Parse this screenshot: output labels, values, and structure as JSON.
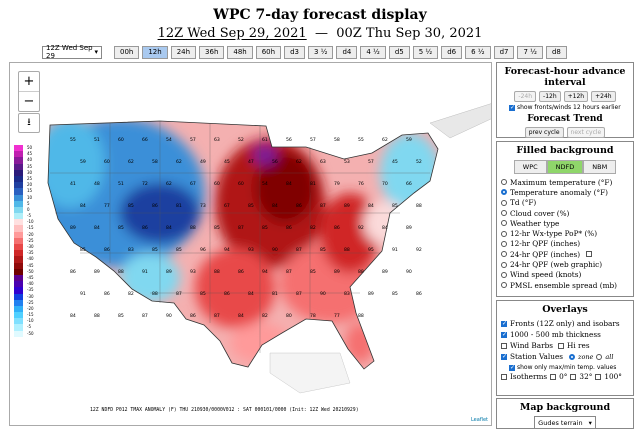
{
  "header": {
    "title": "WPC 7-day forecast display",
    "time_start": "12Z Wed Sep 29, 2021",
    "separator": "—",
    "time_end": "00Z Thu Sep 30, 2021"
  },
  "toolbar": {
    "select_value": "12Z Wed Sep 29",
    "buttons": [
      "00h",
      "12h",
      "24h",
      "36h",
      "48h",
      "60h",
      "d3",
      "3 ½",
      "d4",
      "4 ½",
      "d5",
      "5 ½",
      "d6",
      "6 ½",
      "d7",
      "7 ½",
      "d8"
    ],
    "active": "12h"
  },
  "map": {
    "zoom_in": "+",
    "zoom_out": "−",
    "download_icon": "download-icon",
    "legend": [
      {
        "label": "50",
        "color": "#f030d0"
      },
      {
        "label": "45",
        "color": "#c020b0"
      },
      {
        "label": "40",
        "color": "#8a1a9a"
      },
      {
        "label": "35",
        "color": "#5a1a8a"
      },
      {
        "label": "30",
        "color": "#2a1a7a"
      },
      {
        "label": "25",
        "color": "#1a2a8a"
      },
      {
        "label": "20",
        "color": "#1f3fa0"
      },
      {
        "label": "15",
        "color": "#2a60c0"
      },
      {
        "label": "10",
        "color": "#3a90d8"
      },
      {
        "label": "5",
        "color": "#50b8e8"
      },
      {
        "label": "0",
        "color": "#80d8f0"
      },
      {
        "label": "-5",
        "color": "#b0eef8"
      },
      {
        "label": "-10",
        "color": "#ffe0e0"
      },
      {
        "label": "-15",
        "color": "#ffc0c0"
      },
      {
        "label": "-20",
        "color": "#ff9a9a"
      },
      {
        "label": "-25",
        "color": "#f57070"
      },
      {
        "label": "-30",
        "color": "#e84848"
      },
      {
        "label": "-35",
        "color": "#d02828"
      },
      {
        "label": "-40",
        "color": "#b01818"
      },
      {
        "label": "-45",
        "color": "#900a0a"
      },
      {
        "label": "-50",
        "color": "#700000"
      },
      {
        "label": "-45",
        "color": "#5a0090"
      },
      {
        "label": "-40",
        "color": "#4a00b0"
      },
      {
        "label": "-35",
        "color": "#3000d0"
      },
      {
        "label": "-30",
        "color": "#1040e0"
      },
      {
        "label": "-25",
        "color": "#2080f0"
      },
      {
        "label": "-20",
        "color": "#30b0f8"
      },
      {
        "label": "-15",
        "color": "#50d0ff"
      },
      {
        "label": "-10",
        "color": "#80e0ff"
      },
      {
        "label": "-5",
        "color": "#b0f0ff"
      },
      {
        "label": "-50",
        "color": "#e0faff"
      }
    ],
    "caption": "12Z NDFD P012 TMAX ANOMALY (F)  THU 210930/0000V012 : SAT 000101/0000 (Init: 12Z Wed 20210929)",
    "attribution": "Leaflet",
    "station_values": [
      "55",
      "51",
      "60",
      "66",
      "54",
      "57",
      "63",
      "52",
      "61",
      "56",
      "57",
      "58",
      "55",
      "62",
      "59",
      "59",
      "60",
      "62",
      "58",
      "62",
      "49",
      "45",
      "47",
      "56",
      "62",
      "63",
      "53",
      "57",
      "45",
      "52",
      "41",
      "48",
      "51",
      "72",
      "62",
      "67",
      "60",
      "60",
      "54",
      "84",
      "81",
      "79",
      "76",
      "70",
      "66",
      "84",
      "77",
      "85",
      "86",
      "81",
      "73",
      "67",
      "85",
      "84",
      "86",
      "87",
      "89",
      "84",
      "85",
      "88",
      "89",
      "84",
      "85",
      "86",
      "84",
      "88",
      "85",
      "87",
      "85",
      "86",
      "82",
      "86",
      "92",
      "84",
      "89",
      "85",
      "86",
      "83",
      "85",
      "85",
      "96",
      "94",
      "93",
      "90",
      "87",
      "85",
      "88",
      "95",
      "91",
      "92",
      "86",
      "89",
      "88",
      "91",
      "89",
      "93",
      "88",
      "86",
      "94",
      "87",
      "85",
      "89",
      "88",
      "89",
      "90",
      "91",
      "86",
      "82",
      "88",
      "87",
      "85",
      "86",
      "84",
      "81",
      "87",
      "90",
      "83",
      "89",
      "85",
      "86",
      "84",
      "88",
      "85",
      "87",
      "90",
      "86",
      "87",
      "84",
      "82",
      "80",
      "78",
      "77",
      "88"
    ],
    "colors": {
      "cold": "#3a8fd8",
      "warm": "#d02828",
      "very_warm": "#8a0000",
      "neutral": "#f6c8c8"
    }
  },
  "panel_forecast": {
    "title": "Forecast-hour advance interval",
    "buttons": [
      "-24h",
      "-12h",
      "+12h",
      "+24h"
    ],
    "disabled": [
      "-24h"
    ],
    "checkbox_label": "show fronts/winds 12 hours earlier",
    "trend_title": "Forecast Trend",
    "prev_cycle": "prev cycle",
    "next_cycle": "next cycle"
  },
  "panel_filled": {
    "title": "Filled background",
    "tabs": [
      "WPC",
      "NDFD",
      "NBM"
    ],
    "active_tab": "NDFD",
    "options": [
      "Maximum temperature (°F)",
      "Temperature anomaly (°F)",
      "Td (°F)",
      "Cloud cover (%)",
      "Weather type",
      "12-hr Wx-type PoP* (%)",
      "12-hr QPF (inches)",
      "24-hr QPF (inches)",
      "24-hr QPF (web graphic)",
      "Wind speed (knots)",
      "PMSL ensemble spread (mb)"
    ],
    "selected": "Temperature anomaly (°F)"
  },
  "panel_overlays": {
    "title": "Overlays",
    "fronts": "Fronts (12Z only) and isobars",
    "thickness": "1000 - 500 mb thickness",
    "wind_barbs": "Wind Barbs",
    "hi_res": "Hi res",
    "station_values": "Station Values",
    "zone": "zone",
    "all": "all",
    "minmax": "show only max/min temp. values",
    "isotherms": "Isotherms",
    "iso0": "0°",
    "iso32": "32°",
    "iso100": "100°"
  },
  "panel_map": {
    "title": "Map background",
    "value": "Gudes terrain"
  }
}
